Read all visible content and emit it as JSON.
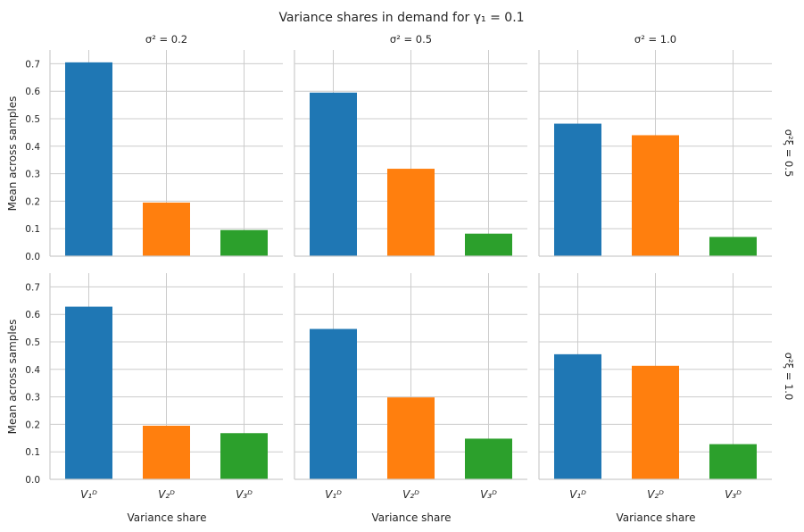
{
  "chart_data": {
    "type": "bar",
    "title": "Variance shares in demand for γ₁ = 0.1",
    "xlabel": "Variance share",
    "ylabel": "Mean across samples",
    "ylim": [
      0,
      0.75
    ],
    "yticks": [
      "0.0",
      "0.1",
      "0.2",
      "0.3",
      "0.4",
      "0.5",
      "0.6",
      "0.7"
    ],
    "grid": true,
    "categories": [
      "V₁ᴰ",
      "V₂ᴰ",
      "V₃ᴰ"
    ],
    "colors": [
      "#1f77b4",
      "#ff7f0e",
      "#2ca02c"
    ],
    "columns": [
      "σ² = 0.2",
      "σ² = 0.5",
      "σ² = 1.0"
    ],
    "rows": [
      "σ²ξ = 0.5",
      "σ²ξ = 1.0"
    ],
    "panels": [
      [
        {
          "values": [
            0.705,
            0.195,
            0.095
          ]
        },
        {
          "values": [
            0.595,
            0.318,
            0.082
          ]
        },
        {
          "values": [
            0.482,
            0.44,
            0.07
          ]
        }
      ],
      [
        {
          "values": [
            0.628,
            0.195,
            0.168
          ]
        },
        {
          "values": [
            0.547,
            0.298,
            0.148
          ]
        },
        {
          "values": [
            0.455,
            0.413,
            0.128
          ]
        }
      ]
    ]
  }
}
